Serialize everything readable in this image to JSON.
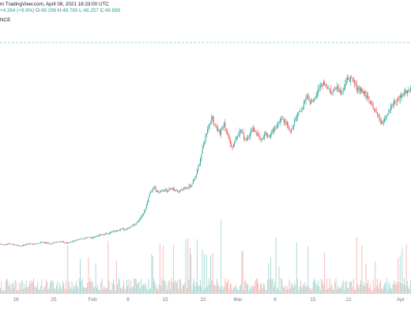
{
  "header": {
    "line1": "m TradingView.com, April 08, 2021 18:33:00 UTC",
    "change": "+4.264 (+9.8%)",
    "ohlc_o_label": "O:",
    "ohlc_o": "48.296",
    "ohlc_h_label": "H:",
    "ohlc_h": "48.765",
    "ohlc_l_label": "L:",
    "ohlc_l": "48.257",
    "ohlc_c_label": "C:",
    "ohlc_c": "48.699",
    "exchange": "NCE"
  },
  "colors": {
    "up": "#26a69a",
    "down": "#ef5350",
    "up_vol": "#a5d7d2",
    "down_vol": "#f4b6b3",
    "dashed_line": "#7ec8e3"
  },
  "chart_data": {
    "type": "candlestick",
    "x_tick_labels": [
      "18",
      "25",
      "Feb",
      "8",
      "15",
      "22",
      "Mar",
      "8",
      "15",
      "22",
      "Apr"
    ],
    "price_close_series": [
      8.5,
      8.3,
      8.6,
      8.4,
      8.2,
      8.0,
      8.3,
      8.6,
      8.4,
      8.7,
      9.0,
      8.8,
      8.5,
      8.9,
      9.2,
      9.0,
      8.7,
      9.1,
      9.4,
      9.6,
      9.9,
      10.3,
      10.0,
      10.5,
      10.8,
      11.0,
      11.3,
      11.6,
      12.0,
      12.4,
      12.2,
      12.8,
      13.4,
      14.2,
      15.6,
      17.5,
      21.5,
      23.2,
      22.0,
      22.5,
      22.1,
      22.8,
      22.3,
      21.9,
      22.6,
      23.0,
      23.6,
      25.5,
      29.5,
      34.0,
      38.5,
      41.0,
      39.0,
      37.0,
      39.5,
      36.0,
      33.5,
      36.5,
      38.0,
      35.5,
      36.5,
      38.5,
      37.0,
      35.0,
      37.0,
      36.5,
      38.0,
      39.5,
      41.0,
      39.5,
      37.5,
      40.0,
      42.5,
      44.0,
      46.5,
      45.0,
      47.0,
      48.5,
      50.5,
      49.0,
      47.5,
      49.5,
      48.0,
      49.0,
      51.5,
      50.5,
      49.0,
      48.5,
      47.0,
      46.0,
      44.0,
      42.0,
      40.0,
      41.5,
      43.5,
      45.0,
      46.0,
      47.0,
      48.0,
      48.7
    ]
  }
}
